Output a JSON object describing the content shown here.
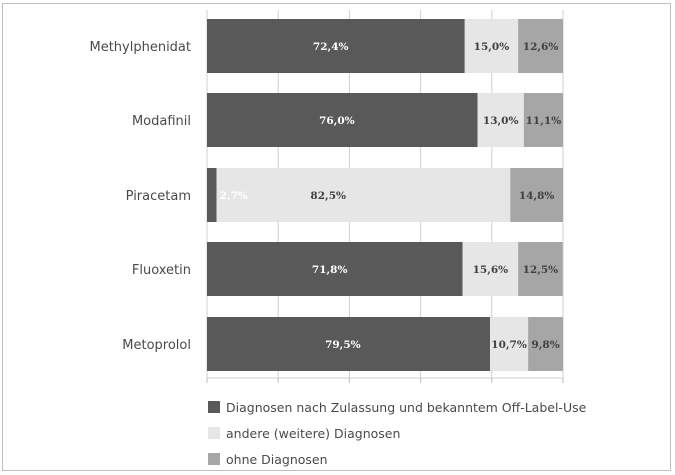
{
  "chart_data": {
    "type": "bar",
    "orientation": "horizontal",
    "stacked": true,
    "percent_stacked": true,
    "categories": [
      "Methylphenidat",
      "Modafinil",
      "Piracetam",
      "Fluoxetin",
      "Metoprolol"
    ],
    "series": [
      {
        "name": "Diagnosen nach Zulassung und bekanntem Off-Label-Use",
        "values": [
          72.4,
          76.0,
          2.7,
          71.8,
          79.5
        ],
        "labels": [
          "72,4%",
          "76,0%",
          "2,7%",
          "71,8%",
          "79,5%"
        ]
      },
      {
        "name": "andere (weitere) Diagnosen",
        "values": [
          15.0,
          13.0,
          82.5,
          15.6,
          10.7
        ],
        "labels": [
          "15,0%",
          "13,0%",
          "82,5%",
          "15,6%",
          "10,7%"
        ]
      },
      {
        "name": "ohne Diagnosen",
        "values": [
          12.6,
          11.1,
          14.8,
          12.5,
          9.8
        ],
        "labels": [
          "12,6%",
          "11,1%",
          "14,8%",
          "12,5%",
          "9,8%"
        ]
      }
    ],
    "colors": [
      "#595959",
      "#e6e6e6",
      "#a6a6a6"
    ],
    "label_colors": [
      "#ffffff",
      "#404040",
      "#404040"
    ],
    "xlim": [
      0,
      100
    ],
    "grid": true,
    "legend": "bottom-left"
  }
}
